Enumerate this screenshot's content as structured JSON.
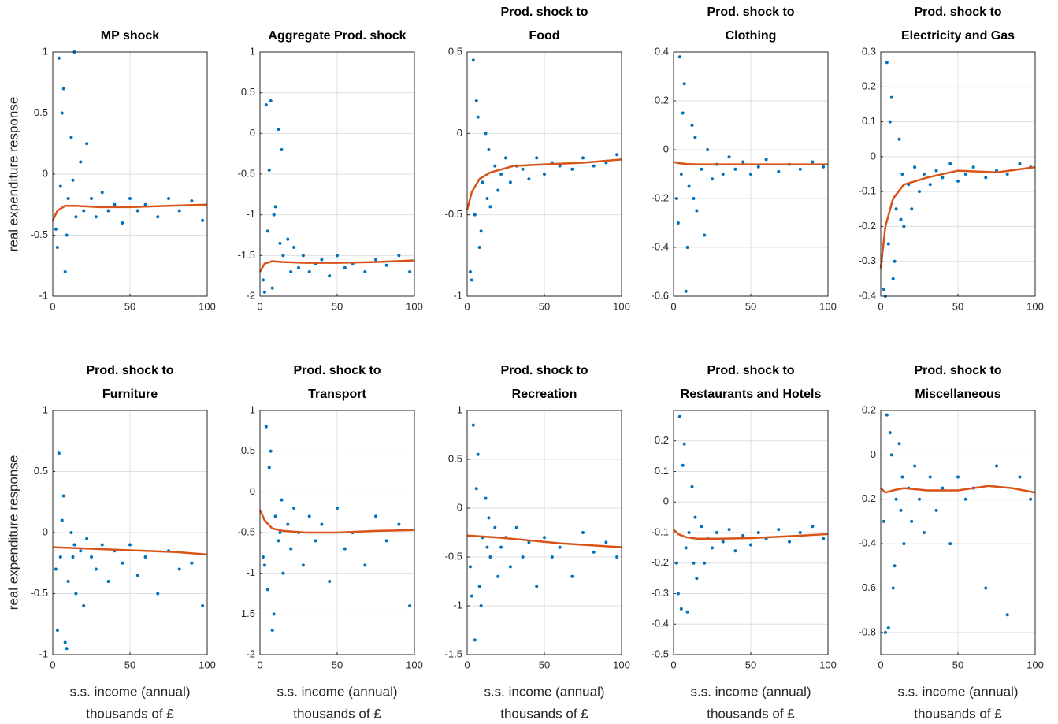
{
  "chart_data": [
    {
      "type": "scatter",
      "title": [
        "MP shock"
      ],
      "ylabel": "real expenditure response",
      "x": [
        2,
        4,
        5,
        7,
        8,
        10,
        12,
        14,
        15,
        18,
        20,
        22,
        25,
        28,
        32,
        36,
        40,
        45,
        50,
        55,
        60,
        68,
        75,
        82,
        90,
        97,
        3,
        6,
        9,
        13
      ],
      "values": [
        -0.45,
        0.95,
        -0.1,
        0.7,
        -0.8,
        -0.2,
        0.3,
        1,
        -0.35,
        0.1,
        -0.3,
        0.25,
        -0.2,
        -0.35,
        -0.15,
        -0.3,
        -0.25,
        -0.4,
        -0.2,
        -0.3,
        -0.25,
        -0.35,
        -0.2,
        -0.3,
        -0.22,
        -0.38,
        -0.6,
        0.5,
        -0.5,
        -0.05
      ],
      "color": "#0072bd",
      "fit": {
        "x": [
          0,
          3,
          8,
          15,
          30,
          50,
          75,
          100
        ],
        "values": [
          -0.38,
          -0.3,
          -0.26,
          -0.26,
          -0.27,
          -0.27,
          -0.26,
          -0.25
        ],
        "color": "#d95319"
      },
      "xlim": [
        0,
        100
      ],
      "xticks": [
        0,
        50,
        100
      ],
      "ylim": [
        -1,
        1
      ],
      "yticks": [
        -1,
        -0.5,
        0,
        0.5,
        1
      ],
      "grid": true
    },
    {
      "type": "scatter",
      "title": [
        "Aggregate Prod. shock"
      ],
      "x": [
        2,
        4,
        5,
        7,
        8,
        10,
        12,
        14,
        15,
        18,
        20,
        22,
        25,
        28,
        32,
        36,
        40,
        45,
        50,
        55,
        60,
        68,
        75,
        82,
        90,
        97,
        3,
        6,
        9,
        13
      ],
      "values": [
        -1.8,
        0.35,
        -1.2,
        0.4,
        -1.9,
        -0.9,
        0.05,
        -0.2,
        -1.5,
        -1.3,
        -1.7,
        -1.4,
        -1.65,
        -1.5,
        -1.7,
        -1.6,
        -1.55,
        -1.75,
        -1.5,
        -1.65,
        -1.6,
        -1.7,
        -1.55,
        -1.62,
        -1.5,
        -1.7,
        -1.95,
        -0.45,
        -1.0,
        -1.35
      ],
      "color": "#0072bd",
      "fit": {
        "x": [
          0,
          3,
          8,
          15,
          30,
          50,
          75,
          100
        ],
        "values": [
          -1.7,
          -1.6,
          -1.57,
          -1.58,
          -1.59,
          -1.59,
          -1.58,
          -1.56
        ],
        "color": "#d95319"
      },
      "xlim": [
        0,
        100
      ],
      "xticks": [
        0,
        50,
        100
      ],
      "ylim": [
        -2,
        1
      ],
      "yticks": [
        -2,
        -1.5,
        -1,
        -0.5,
        0,
        0.5,
        1
      ],
      "grid": true
    },
    {
      "type": "scatter",
      "title": [
        "Prod. shock to",
        "Food"
      ],
      "x": [
        2,
        4,
        5,
        7,
        8,
        10,
        12,
        14,
        15,
        18,
        20,
        22,
        25,
        28,
        32,
        36,
        40,
        45,
        50,
        55,
        60,
        68,
        75,
        82,
        90,
        97,
        3,
        6,
        9,
        13
      ],
      "values": [
        -0.85,
        0.45,
        -0.5,
        0.1,
        -0.7,
        -0.3,
        0.0,
        -0.1,
        -0.45,
        -0.2,
        -0.35,
        -0.25,
        -0.15,
        -0.3,
        -0.2,
        -0.22,
        -0.28,
        -0.15,
        -0.25,
        -0.18,
        -0.2,
        -0.22,
        -0.15,
        -0.2,
        -0.18,
        -0.13,
        -0.9,
        0.2,
        -0.6,
        -0.4
      ],
      "color": "#0072bd",
      "fit": {
        "x": [
          0,
          3,
          8,
          15,
          30,
          50,
          75,
          100
        ],
        "values": [
          -0.47,
          -0.36,
          -0.28,
          -0.24,
          -0.2,
          -0.19,
          -0.18,
          -0.16
        ],
        "color": "#d95319"
      },
      "xlim": [
        0,
        100
      ],
      "xticks": [
        0,
        50,
        100
      ],
      "ylim": [
        -1,
        0.5
      ],
      "yticks": [
        -1,
        -0.5,
        0,
        0.5
      ],
      "grid": true
    },
    {
      "type": "scatter",
      "title": [
        "Prod. shock to",
        "Clothing"
      ],
      "x": [
        2,
        4,
        5,
        7,
        8,
        10,
        12,
        14,
        15,
        18,
        20,
        22,
        25,
        28,
        32,
        36,
        40,
        45,
        50,
        55,
        60,
        68,
        75,
        82,
        90,
        97,
        3,
        6,
        9,
        13
      ],
      "values": [
        -0.2,
        0.38,
        -0.1,
        0.27,
        -0.58,
        -0.15,
        0.1,
        0.05,
        -0.25,
        -0.08,
        -0.35,
        0.0,
        -0.12,
        -0.06,
        -0.1,
        -0.03,
        -0.08,
        -0.05,
        -0.1,
        -0.07,
        -0.04,
        -0.09,
        -0.06,
        -0.08,
        -0.05,
        -0.07,
        -0.3,
        0.15,
        -0.4,
        -0.2
      ],
      "color": "#0072bd",
      "fit": {
        "x": [
          0,
          3,
          8,
          15,
          30,
          50,
          75,
          100
        ],
        "values": [
          -0.05,
          -0.055,
          -0.058,
          -0.06,
          -0.06,
          -0.06,
          -0.06,
          -0.06
        ],
        "color": "#d95319"
      },
      "xlim": [
        0,
        100
      ],
      "xticks": [
        0,
        50,
        100
      ],
      "ylim": [
        -0.6,
        0.4
      ],
      "yticks": [
        -0.6,
        -0.4,
        -0.2,
        0,
        0.2,
        0.4
      ],
      "grid": true
    },
    {
      "type": "scatter",
      "title": [
        "Prod. shock to",
        "Electricity and Gas"
      ],
      "x": [
        2,
        4,
        5,
        7,
        8,
        10,
        12,
        14,
        15,
        18,
        20,
        22,
        25,
        28,
        32,
        36,
        40,
        45,
        50,
        55,
        60,
        68,
        75,
        82,
        90,
        97,
        3,
        6,
        9,
        13
      ],
      "values": [
        -0.38,
        0.27,
        -0.25,
        0.17,
        -0.35,
        -0.15,
        0.05,
        -0.05,
        -0.2,
        -0.08,
        -0.15,
        -0.03,
        -0.1,
        -0.05,
        -0.08,
        -0.04,
        -0.06,
        -0.02,
        -0.07,
        -0.05,
        -0.03,
        -0.06,
        -0.04,
        -0.05,
        -0.02,
        -0.03,
        -0.4,
        0.1,
        -0.3,
        -0.18
      ],
      "color": "#0072bd",
      "fit": {
        "x": [
          0,
          3,
          8,
          15,
          30,
          50,
          75,
          100
        ],
        "values": [
          -0.32,
          -0.2,
          -0.12,
          -0.08,
          -0.06,
          -0.04,
          -0.045,
          -0.03
        ],
        "color": "#d95319"
      },
      "xlim": [
        0,
        100
      ],
      "xticks": [
        0,
        50,
        100
      ],
      "ylim": [
        -0.4,
        0.3
      ],
      "yticks": [
        -0.4,
        -0.3,
        -0.2,
        -0.1,
        0,
        0.1,
        0.2,
        0.3
      ],
      "grid": true
    },
    {
      "type": "scatter",
      "title": [
        "Prod. shock to",
        "Furniture"
      ],
      "ylabel": "real expenditure response",
      "xlabel": [
        "s.s. income (annual)",
        "thousands of £"
      ],
      "x": [
        2,
        4,
        5,
        7,
        8,
        10,
        12,
        14,
        15,
        18,
        20,
        22,
        25,
        28,
        32,
        36,
        40,
        45,
        50,
        55,
        60,
        68,
        75,
        82,
        90,
        97,
        3,
        6,
        9,
        13
      ],
      "values": [
        -0.3,
        0.65,
        -0.2,
        0.3,
        -0.9,
        -0.4,
        0.0,
        -0.1,
        -0.5,
        -0.15,
        -0.6,
        -0.05,
        -0.2,
        -0.3,
        -0.1,
        -0.4,
        -0.15,
        -0.25,
        -0.1,
        -0.35,
        -0.2,
        -0.5,
        -0.15,
        -0.3,
        -0.25,
        -0.6,
        -0.8,
        0.1,
        -0.95,
        -0.2
      ],
      "color": "#0072bd",
      "fit": {
        "x": [
          0,
          20,
          40,
          60,
          80,
          100
        ],
        "values": [
          -0.12,
          -0.13,
          -0.14,
          -0.15,
          -0.16,
          -0.18
        ],
        "color": "#d95319"
      },
      "xlim": [
        0,
        100
      ],
      "xticks": [
        0,
        50,
        100
      ],
      "ylim": [
        -1,
        1
      ],
      "yticks": [
        -1,
        -0.5,
        0,
        0.5,
        1
      ],
      "grid": true
    },
    {
      "type": "scatter",
      "title": [
        "Prod. shock to",
        "Transport"
      ],
      "xlabel": [
        "s.s. income (annual)",
        "thousands of £"
      ],
      "x": [
        2,
        4,
        5,
        7,
        8,
        10,
        12,
        14,
        15,
        18,
        20,
        22,
        25,
        28,
        32,
        36,
        40,
        45,
        50,
        55,
        60,
        68,
        75,
        82,
        90,
        97,
        3,
        6,
        9,
        13
      ],
      "values": [
        -0.8,
        0.8,
        -1.2,
        0.5,
        -1.7,
        -0.3,
        -0.6,
        -0.1,
        -1.0,
        -0.4,
        -0.7,
        -0.2,
        -0.5,
        -0.9,
        -0.3,
        -0.6,
        -0.4,
        -1.1,
        -0.2,
        -0.7,
        -0.5,
        -0.9,
        -0.3,
        -0.6,
        -0.4,
        -1.4,
        -0.9,
        0.3,
        -1.5,
        -0.5
      ],
      "color": "#0072bd",
      "fit": {
        "x": [
          0,
          3,
          8,
          15,
          30,
          50,
          75,
          100
        ],
        "values": [
          -0.22,
          -0.35,
          -0.45,
          -0.48,
          -0.5,
          -0.5,
          -0.48,
          -0.47
        ],
        "color": "#d95319"
      },
      "xlim": [
        0,
        100
      ],
      "xticks": [
        0,
        50,
        100
      ],
      "ylim": [
        -2,
        1
      ],
      "yticks": [
        -2,
        -1.5,
        -1,
        -0.5,
        0,
        0.5,
        1
      ],
      "grid": true
    },
    {
      "type": "scatter",
      "title": [
        "Prod. shock to",
        "Recreation"
      ],
      "xlabel": [
        "s.s. income (annual)",
        "thousands of £"
      ],
      "x": [
        2,
        4,
        5,
        7,
        8,
        10,
        12,
        14,
        15,
        18,
        20,
        22,
        25,
        28,
        32,
        36,
        40,
        45,
        50,
        55,
        60,
        68,
        75,
        82,
        90,
        97,
        3,
        6,
        9,
        13
      ],
      "values": [
        -0.6,
        0.85,
        -1.35,
        0.55,
        -0.8,
        -0.3,
        0.1,
        -0.1,
        -0.5,
        -0.2,
        -0.7,
        -0.4,
        -0.3,
        -0.6,
        -0.2,
        -0.5,
        -0.35,
        -0.8,
        -0.3,
        -0.5,
        -0.4,
        -0.7,
        -0.25,
        -0.45,
        -0.35,
        -0.5,
        -0.9,
        0.2,
        -1.0,
        -0.4
      ],
      "color": "#0072bd",
      "fit": {
        "x": [
          0,
          20,
          40,
          60,
          80,
          100
        ],
        "values": [
          -0.28,
          -0.3,
          -0.33,
          -0.36,
          -0.38,
          -0.4
        ],
        "color": "#d95319"
      },
      "xlim": [
        0,
        100
      ],
      "xticks": [
        0,
        50,
        100
      ],
      "ylim": [
        -1.5,
        1
      ],
      "yticks": [
        -1.5,
        -1,
        -0.5,
        0,
        0.5,
        1
      ],
      "grid": true
    },
    {
      "type": "scatter",
      "title": [
        "Prod. shock to",
        "Restaurants and Hotels"
      ],
      "xlabel": [
        "s.s. income (annual)",
        "thousands of £"
      ],
      "x": [
        2,
        4,
        5,
        7,
        8,
        10,
        12,
        14,
        15,
        18,
        20,
        22,
        25,
        28,
        32,
        36,
        40,
        45,
        50,
        55,
        60,
        68,
        75,
        82,
        90,
        97,
        3,
        6,
        9,
        13
      ],
      "values": [
        -0.2,
        0.28,
        -0.35,
        0.19,
        -0.15,
        -0.1,
        0.05,
        -0.05,
        -0.25,
        -0.08,
        -0.2,
        -0.12,
        -0.15,
        -0.1,
        -0.13,
        -0.09,
        -0.16,
        -0.11,
        -0.14,
        -0.1,
        -0.12,
        -0.09,
        -0.13,
        -0.1,
        -0.08,
        -0.12,
        -0.3,
        0.12,
        -0.36,
        -0.2
      ],
      "color": "#0072bd",
      "fit": {
        "x": [
          0,
          3,
          8,
          15,
          30,
          50,
          75,
          100
        ],
        "values": [
          -0.09,
          -0.105,
          -0.115,
          -0.12,
          -0.12,
          -0.118,
          -0.112,
          -0.105
        ],
        "color": "#d95319"
      },
      "xlim": [
        0,
        100
      ],
      "xticks": [
        0,
        50,
        100
      ],
      "ylim": [
        -0.5,
        0.3
      ],
      "yticks": [
        -0.5,
        -0.4,
        -0.3,
        -0.2,
        -0.1,
        0,
        0.1,
        0.2
      ],
      "grid": true
    },
    {
      "type": "scatter",
      "title": [
        "Prod. shock to",
        "Miscellaneous"
      ],
      "xlabel": [
        "s.s. income (annual)",
        "thousands of £"
      ],
      "x": [
        2,
        4,
        5,
        7,
        8,
        10,
        12,
        14,
        15,
        18,
        20,
        22,
        25,
        28,
        32,
        36,
        40,
        45,
        50,
        55,
        60,
        68,
        75,
        82,
        90,
        97,
        3,
        6,
        9,
        13
      ],
      "values": [
        -0.3,
        0.18,
        -0.78,
        0.0,
        -0.6,
        -0.2,
        0.05,
        -0.1,
        -0.4,
        -0.15,
        -0.3,
        -0.05,
        -0.2,
        -0.35,
        -0.1,
        -0.25,
        -0.15,
        -0.4,
        -0.1,
        -0.2,
        -0.15,
        -0.6,
        -0.05,
        -0.72,
        -0.1,
        -0.2,
        -0.8,
        0.1,
        -0.5,
        -0.25
      ],
      "color": "#0072bd",
      "fit": {
        "x": [
          0,
          3,
          8,
          15,
          30,
          50,
          70,
          85,
          100
        ],
        "values": [
          -0.15,
          -0.17,
          -0.16,
          -0.15,
          -0.16,
          -0.16,
          -0.14,
          -0.15,
          -0.17
        ],
        "color": "#d95319"
      },
      "xlim": [
        0,
        100
      ],
      "xticks": [
        0,
        50,
        100
      ],
      "ylim": [
        -0.9,
        0.2
      ],
      "yticks": [
        -0.8,
        -0.6,
        -0.4,
        -0.2,
        0,
        0.2
      ],
      "grid": true
    }
  ]
}
